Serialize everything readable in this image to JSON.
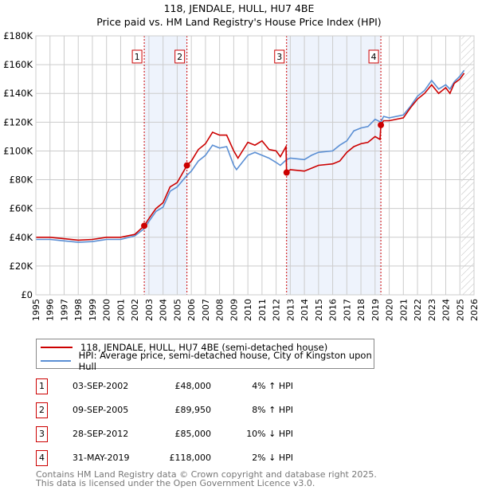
{
  "title_line1": "118, JENDALE, HULL, HU7 4BE",
  "title_line2": "Price paid vs. HM Land Registry's House Price Index (HPI)",
  "colors": {
    "property": "#cc0000",
    "hpi": "#5b8fd4",
    "shade": "#eef3fc",
    "marker": "#cc0000"
  },
  "chart_data": {
    "type": "line",
    "xlim": [
      1995,
      2026
    ],
    "ylim": [
      0,
      180000
    ],
    "yticks": [
      0,
      20000,
      40000,
      60000,
      80000,
      100000,
      120000,
      140000,
      160000,
      180000
    ],
    "ytick_labels": [
      "£0",
      "£20K",
      "£40K",
      "£60K",
      "£80K",
      "£100K",
      "£120K",
      "£140K",
      "£160K",
      "£180K"
    ],
    "xticks": [
      1995,
      1996,
      1997,
      1998,
      1999,
      2000,
      2001,
      2002,
      2003,
      2004,
      2005,
      2006,
      2007,
      2008,
      2009,
      2010,
      2011,
      2012,
      2013,
      2014,
      2015,
      2016,
      2017,
      2018,
      2019,
      2020,
      2021,
      2022,
      2023,
      2024,
      2025,
      2026
    ],
    "grid": true,
    "shaded_periods": [
      [
        2002.67,
        2005.69
      ],
      [
        2012.74,
        2019.41
      ]
    ],
    "forecast_hatch_from": 2025.1,
    "series": [
      {
        "name": "118, JENDALE, HULL, HU7 4BE (semi-detached house)",
        "x": [
          1995,
          1996,
          1997,
          1998,
          1999,
          2000,
          2001,
          2002,
          2002.67,
          2003,
          2003.5,
          2004,
          2004.5,
          2005,
          2005.69,
          2006,
          2006.5,
          2007,
          2007.5,
          2008,
          2008.5,
          2009,
          2009.3,
          2010,
          2010.5,
          2011,
          2011.5,
          2012,
          2012.3,
          2012.7,
          2012.74,
          2013,
          2014,
          2014.5,
          2015,
          2016,
          2016.5,
          2017,
          2017.5,
          2018,
          2018.5,
          2019,
          2019.35,
          2019.41,
          2019.6,
          2020,
          2021,
          2021.5,
          2022,
          2022.5,
          2023,
          2023.5,
          2024,
          2024.3,
          2024.6,
          2025,
          2025.3
        ],
        "y": [
          40000,
          40000,
          39000,
          38000,
          38500,
          40000,
          40000,
          42000,
          48000,
          53000,
          60000,
          64000,
          75000,
          78000,
          89950,
          93000,
          101000,
          105000,
          113000,
          111000,
          111000,
          100000,
          95000,
          106000,
          104000,
          107000,
          101000,
          100000,
          96000,
          103000,
          85000,
          87000,
          86000,
          88000,
          90000,
          91000,
          93000,
          99000,
          103000,
          105000,
          106000,
          110000,
          108000,
          118000,
          121000,
          121000,
          123000,
          130000,
          136000,
          140000,
          146000,
          140000,
          144000,
          140000,
          147000,
          150000,
          154000
        ]
      },
      {
        "name": "HPI: Average price, semi-detached house, City of Kingston upon Hull",
        "x": [
          1995,
          1996,
          1997,
          1998,
          1999,
          2000,
          2001,
          2002,
          2002.67,
          2003,
          2003.5,
          2004,
          2004.5,
          2005,
          2005.69,
          2006,
          2006.5,
          2007,
          2007.5,
          2008,
          2008.5,
          2009,
          2009.2,
          2010,
          2010.5,
          2011,
          2011.5,
          2012,
          2012.3,
          2012.74,
          2013,
          2014,
          2014.5,
          2015,
          2016,
          2016.5,
          2017,
          2017.5,
          2018,
          2018.5,
          2019,
          2019.41,
          2019.6,
          2020,
          2021,
          2021.5,
          2022,
          2022.5,
          2023,
          2023.5,
          2024,
          2024.3,
          2024.6,
          2025,
          2025.3
        ],
        "y": [
          38500,
          38500,
          37500,
          36500,
          37000,
          38500,
          38500,
          41000,
          46000,
          51000,
          58000,
          61000,
          72000,
          75000,
          83000,
          86000,
          93000,
          97000,
          104000,
          102000,
          103000,
          90000,
          87000,
          97000,
          99000,
          97000,
          95000,
          92000,
          90000,
          94000,
          95000,
          94000,
          97000,
          99000,
          100000,
          104000,
          107000,
          114000,
          116000,
          117000,
          122000,
          120000,
          124000,
          123000,
          125000,
          131000,
          138000,
          142000,
          149000,
          143000,
          146000,
          143000,
          148000,
          152000,
          156000
        ]
      }
    ],
    "sales": [
      {
        "n": "1",
        "x": 2002.67,
        "y": 48000
      },
      {
        "n": "2",
        "x": 2005.69,
        "y": 89950
      },
      {
        "n": "3",
        "x": 2012.74,
        "y": 85000
      },
      {
        "n": "4",
        "x": 2019.41,
        "y": 118000
      }
    ]
  },
  "legend": {
    "property": "118, JENDALE, HULL, HU7 4BE (semi-detached house)",
    "hpi": "HPI: Average price, semi-detached house, City of Kingston upon Hull"
  },
  "transactions": [
    {
      "n": "1",
      "date": "03-SEP-2002",
      "price": "£48,000",
      "hpi": "4% ↑ HPI"
    },
    {
      "n": "2",
      "date": "09-SEP-2005",
      "price": "£89,950",
      "hpi": "8% ↑ HPI"
    },
    {
      "n": "3",
      "date": "28-SEP-2012",
      "price": "£85,000",
      "hpi": "10% ↓ HPI"
    },
    {
      "n": "4",
      "date": "31-MAY-2019",
      "price": "£118,000",
      "hpi": "2% ↓ HPI"
    }
  ],
  "footer": {
    "line1": "Contains HM Land Registry data © Crown copyright and database right 2025.",
    "line2": "This data is licensed under the Open Government Licence v3.0."
  }
}
